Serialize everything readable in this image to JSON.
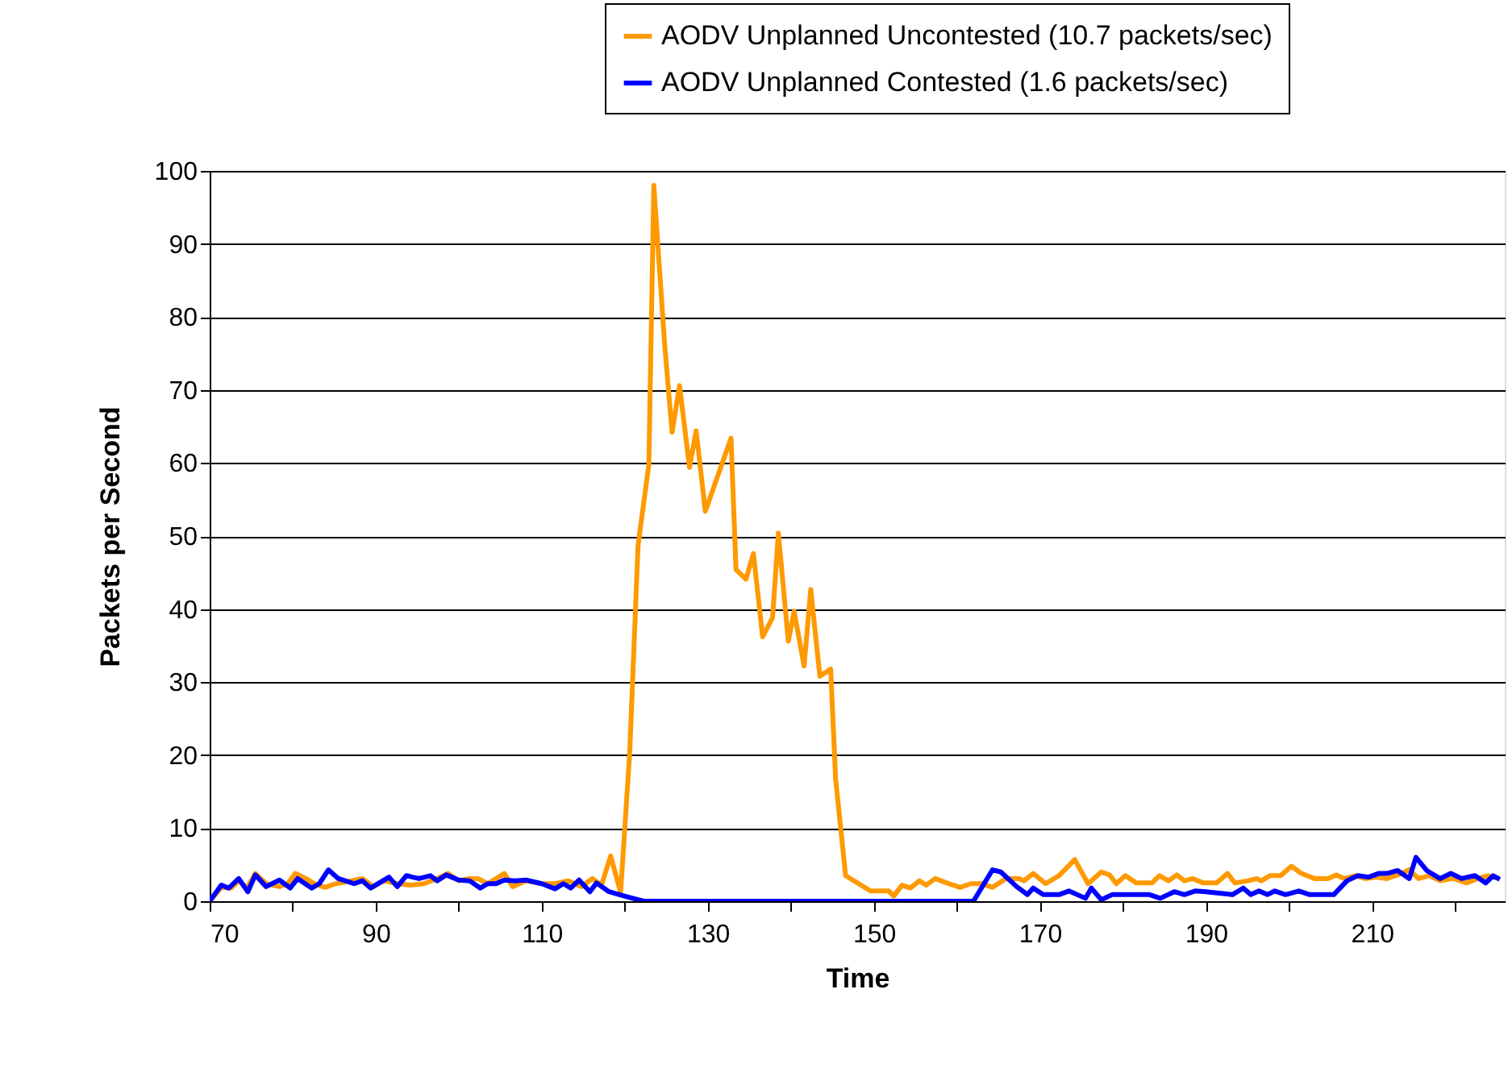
{
  "chart_data": {
    "type": "line",
    "xlabel": "Time",
    "ylabel": "Packets per Second",
    "xlim": [
      70,
      226
    ],
    "xticks": [
      70,
      {
        "value": 80,
        "label": null
      },
      90,
      {
        "value": 100,
        "label": null
      },
      110,
      {
        "value": 120,
        "label": null
      },
      130,
      {
        "value": 140,
        "label": null
      },
      150,
      {
        "value": 160,
        "label": null
      },
      170,
      {
        "value": 180,
        "label": null
      },
      190,
      {
        "value": 200,
        "label": null
      },
      210,
      {
        "value": 220,
        "label": null
      }
    ],
    "ylim": [
      0,
      100
    ],
    "yticks": [
      0,
      10,
      20,
      30,
      40,
      50,
      60,
      70,
      80,
      90,
      100
    ],
    "grid": "y",
    "legend": "top right",
    "line_style": "solid",
    "series": [
      {
        "name": "AODV Unplanned Uncontested (10.7 packets/sec)",
        "color": "#ff9900",
        "x": [
          70,
          71.4,
          72.6,
          73.5,
          74.5,
          75.5,
          76.8,
          78.4,
          79.4,
          80.3,
          81.6,
          82.6,
          83.9,
          85.2,
          87.1,
          88.4,
          89.7,
          91,
          92.6,
          94.2,
          95.8,
          97.4,
          98.7,
          100,
          101.3,
          102.3,
          103.5,
          105.5,
          106.5,
          108.1,
          110,
          111.6,
          113.2,
          114.8,
          116.1,
          117.2,
          118.3,
          119.5,
          120.6,
          121.6,
          122.9,
          123.5,
          124.8,
          125.7,
          126.6,
          127.8,
          128.6,
          129.7,
          132.8,
          133.4,
          134.6,
          135.5,
          136.6,
          137.8,
          138.5,
          139.7,
          140.4,
          141.6,
          142.4,
          143.5,
          144.8,
          145.4,
          146.6,
          149.6,
          151.8,
          152.4,
          153.4,
          154.4,
          155.5,
          156.3,
          157.4,
          158.8,
          160.4,
          161.7,
          163,
          164.3,
          165.9,
          167.5,
          168.1,
          169.2,
          170.7,
          172.3,
          174.2,
          175.8,
          177.4,
          178.4,
          179.2,
          180.3,
          181.6,
          183.5,
          184.4,
          185.5,
          186.5,
          187.4,
          188.4,
          189.7,
          191.3,
          192.6,
          193.5,
          195.1,
          196.1,
          196.7,
          197.7,
          199,
          200.3,
          201.5,
          203.1,
          204.7,
          205.7,
          206.7,
          208,
          209.2,
          210.5,
          211.8,
          213.1,
          214.5,
          215.6,
          216.9,
          218.2,
          219.8,
          221.4,
          222.7,
          224,
          225.3
        ],
        "values": [
          0,
          1.9,
          1.8,
          2.8,
          1.8,
          3.8,
          2.4,
          2.0,
          2.4,
          3.8,
          3.1,
          2.4,
          1.9,
          2.4,
          2.8,
          3.1,
          2.0,
          2.8,
          2.4,
          2.2,
          2.4,
          3.1,
          3.8,
          2.8,
          3.1,
          3.1,
          2.4,
          3.8,
          2.0,
          2.8,
          2.4,
          2.4,
          2.8,
          2.0,
          3.1,
          2.2,
          6.2,
          1.2,
          20.4,
          48.7,
          59.8,
          98,
          76.3,
          64.2,
          70.6,
          59.4,
          64.4,
          53.4,
          63.4,
          45.4,
          44.1,
          47.6,
          36.2,
          38.8,
          50.4,
          35.6,
          39.7,
          32.2,
          42.7,
          30.8,
          31.8,
          16.7,
          3.5,
          1.4,
          1.4,
          0.7,
          2.2,
          1.8,
          2.8,
          2.2,
          3.1,
          2.5,
          1.9,
          2.4,
          2.4,
          1.9,
          3.1,
          3.1,
          2.8,
          3.8,
          2.4,
          3.5,
          5.7,
          2.4,
          4.0,
          3.6,
          2.4,
          3.5,
          2.5,
          2.5,
          3.5,
          2.8,
          3.6,
          2.8,
          3.1,
          2.5,
          2.5,
          3.8,
          2.5,
          2.8,
          3.1,
          2.8,
          3.5,
          3.5,
          4.8,
          3.8,
          3.1,
          3.1,
          3.6,
          3.1,
          3.5,
          3.1,
          3.3,
          3.1,
          3.6,
          4.3,
          3.1,
          3.5,
          2.8,
          3.1,
          2.5,
          3.1,
          3.5,
          3.1
        ]
      },
      {
        "name": "AODV Unplanned Contested (1.6 packets/sec)",
        "color": "#0000ff",
        "x": [
          70,
          71.4,
          72.3,
          73.5,
          74.6,
          75.5,
          76.8,
          78.4,
          79.7,
          80.6,
          82.3,
          83.2,
          84.3,
          85.5,
          87.4,
          88.4,
          89.4,
          91.6,
          92.6,
          93.7,
          95.2,
          96.6,
          97.4,
          98.5,
          100,
          101.3,
          102.6,
          103.5,
          104.5,
          105.5,
          106.8,
          108.1,
          110,
          111.6,
          112.6,
          113.5,
          114.5,
          115.8,
          116.6,
          118.1,
          120.3,
          122.3,
          130,
          140,
          150,
          162,
          164.3,
          165.3,
          167.2,
          168.5,
          169.2,
          170.4,
          172.3,
          173.5,
          175.5,
          176.2,
          177.4,
          178.7,
          183.2,
          184.5,
          186.2,
          187.4,
          188.7,
          190,
          193.2,
          194.5,
          195.4,
          196.4,
          197.4,
          198.3,
          199.6,
          201.2,
          202.5,
          205.4,
          207,
          208.3,
          209.6,
          210.8,
          211.8,
          213.1,
          214.5,
          215.3,
          216.6,
          218.2,
          219.5,
          220.8,
          222.4,
          223.7,
          224.6,
          225.4
        ],
        "values": [
          0,
          2.2,
          1.8,
          3.1,
          1.3,
          3.6,
          2.0,
          2.9,
          1.8,
          3.1,
          1.8,
          2.4,
          4.3,
          3.1,
          2.4,
          2.8,
          1.8,
          3.3,
          2.0,
          3.5,
          3.1,
          3.5,
          2.8,
          3.6,
          2.9,
          2.8,
          1.8,
          2.4,
          2.4,
          2.9,
          2.8,
          2.9,
          2.4,
          1.7,
          2.4,
          1.8,
          2.9,
          1.3,
          2.5,
          1.3,
          0.6,
          0,
          0,
          0,
          0,
          0,
          4.3,
          4.0,
          2.0,
          0.9,
          1.8,
          0.9,
          0.9,
          1.4,
          0.4,
          1.8,
          0.2,
          0.9,
          0.9,
          0.4,
          1.3,
          0.9,
          1.4,
          1.3,
          0.9,
          1.8,
          0.9,
          1.4,
          0.9,
          1.4,
          0.9,
          1.4,
          0.9,
          0.9,
          2.8,
          3.5,
          3.3,
          3.8,
          3.8,
          4.2,
          3.1,
          6.0,
          4.2,
          3.1,
          3.8,
          3.1,
          3.5,
          2.5,
          3.5,
          3.0
        ]
      }
    ]
  }
}
